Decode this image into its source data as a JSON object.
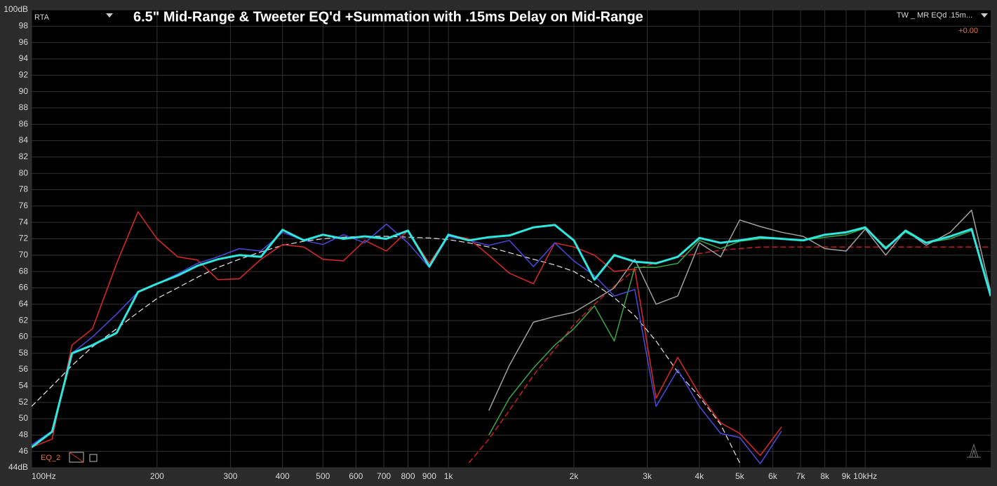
{
  "chart_data": {
    "type": "line",
    "title": "6.5\" Mid-Range & Tweeter EQ'd +Summation with .15ms Delay on Mid-Range",
    "xscale": "log",
    "grid": true,
    "xlim": [
      100,
      20000
    ],
    "ylim": [
      44,
      100
    ],
    "xticks": [
      {
        "value": 100,
        "label": "100Hz"
      },
      200,
      300,
      400,
      500,
      600,
      700,
      800,
      900,
      {
        "value": 1000,
        "label": "1k"
      },
      {
        "value": 2000,
        "label": "2k"
      },
      {
        "value": 3000,
        "label": "3k"
      },
      {
        "value": 4000,
        "label": "4k"
      },
      {
        "value": 5000,
        "label": "5k"
      },
      {
        "value": 6000,
        "label": "6k"
      },
      {
        "value": 7000,
        "label": "7k"
      },
      {
        "value": 8000,
        "label": "8k"
      },
      {
        "value": 9000,
        "label": "9k"
      },
      {
        "value": 10000,
        "label": "10kHz"
      }
    ],
    "yticks": [
      {
        "value": 44,
        "label": "44dB"
      },
      46,
      48,
      50,
      52,
      54,
      56,
      58,
      60,
      62,
      64,
      66,
      68,
      70,
      72,
      74,
      76,
      78,
      80,
      82,
      84,
      86,
      88,
      90,
      92,
      94,
      96,
      98,
      {
        "value": 100,
        "label": "100dB"
      }
    ],
    "x": [
      100,
      112,
      125,
      140,
      160,
      180,
      200,
      224,
      250,
      280,
      315,
      355,
      400,
      450,
      500,
      560,
      630,
      710,
      800,
      900,
      1000,
      1120,
      1250,
      1400,
      1600,
      1800,
      2000,
      2240,
      2500,
      2800,
      3150,
      3550,
      4000,
      4500,
      5000,
      5600,
      6300,
      7100,
      8000,
      9000,
      10000,
      11200,
      12500,
      14000,
      16000,
      18000,
      20000
    ],
    "series": [
      {
        "color": "#e8e8e8",
        "dash": true,
        "width": 1.2,
        "values": [
          51.5,
          54,
          56.5,
          58.8,
          61,
          63,
          64.7,
          66,
          67.3,
          68.5,
          69.5,
          70.4,
          71.2,
          71.7,
          72,
          72.2,
          72.3,
          72.3,
          72.2,
          72.1,
          71.9,
          71.5,
          71,
          70.3,
          69.5,
          68.8,
          68,
          66.5,
          64.8,
          62.6,
          59.5,
          55.7,
          52.7,
          49.3,
          44.6,
          null,
          null,
          null,
          null,
          null,
          null,
          null,
          null,
          null,
          null,
          null,
          null
        ]
      },
      {
        "color": "#d42020",
        "dash": true,
        "width": 1.4,
        "values": [
          null,
          null,
          null,
          null,
          null,
          null,
          null,
          null,
          null,
          null,
          null,
          null,
          null,
          null,
          null,
          null,
          null,
          null,
          null,
          null,
          null,
          44.6,
          47.5,
          51,
          55.3,
          58.5,
          61.5,
          64,
          66.2,
          68.2,
          69.1,
          69.8,
          70.2,
          70.6,
          70.8,
          71,
          71,
          71,
          71,
          71,
          71,
          71,
          71,
          71,
          71,
          71,
          71
        ]
      },
      {
        "color": "#a0a0a0",
        "dash": false,
        "width": 1.5,
        "values": [
          null,
          null,
          null,
          null,
          null,
          null,
          null,
          null,
          null,
          null,
          null,
          null,
          null,
          null,
          null,
          null,
          null,
          null,
          null,
          null,
          null,
          null,
          51,
          56.5,
          61.8,
          62.5,
          63,
          64.5,
          66,
          69.5,
          64,
          65,
          71.5,
          69.8,
          74.3,
          73.5,
          72.8,
          72.3,
          70.8,
          70.5,
          73.2,
          70,
          73,
          71.2,
          72.8,
          75.5,
          65.5
        ]
      },
      {
        "color": "#3aa64a",
        "dash": false,
        "width": 1.5,
        "values": [
          null,
          null,
          null,
          null,
          null,
          null,
          null,
          null,
          null,
          null,
          null,
          null,
          null,
          null,
          null,
          null,
          null,
          null,
          null,
          null,
          null,
          null,
          48,
          52.5,
          56.2,
          59,
          61,
          63.8,
          59.5,
          68.5,
          68.5,
          69,
          71.8,
          70.8,
          71.7,
          72,
          72,
          71.8,
          72.2,
          72.5,
          73.3,
          71,
          72.8,
          71.5,
          72,
          73,
          65
        ]
      },
      {
        "color": "#e02828",
        "dash": false,
        "width": 1.5,
        "values": [
          46.5,
          47.5,
          59,
          61,
          69,
          75.3,
          72,
          69.8,
          69.4,
          67,
          67.1,
          69.5,
          71.3,
          71,
          69.5,
          69.3,
          71.8,
          70.5,
          73,
          69,
          72.5,
          72,
          70,
          67.8,
          66.5,
          71.5,
          71,
          70,
          68,
          68.3,
          52.5,
          57.5,
          53,
          49.5,
          48.2,
          45.5,
          49,
          null,
          null,
          null,
          null,
          null,
          null,
          null,
          null,
          null,
          null
        ]
      },
      {
        "color": "#4a4ae0",
        "dash": false,
        "width": 1.5,
        "values": [
          46.8,
          48.5,
          58,
          60,
          62.8,
          65.5,
          66.5,
          67.7,
          69,
          69.8,
          70.8,
          70.5,
          72.8,
          71.8,
          71.3,
          72.5,
          71.5,
          73.8,
          71.5,
          68.5,
          72.3,
          71.8,
          71.2,
          71.8,
          68.6,
          71.5,
          69.3,
          67.5,
          65,
          65.8,
          51.5,
          56,
          51.5,
          48.2,
          47.7,
          44.5,
          48.5,
          null,
          null,
          null,
          null,
          null,
          null,
          null,
          null,
          null,
          null
        ]
      },
      {
        "color": "#2ee8e0",
        "dash": false,
        "width": 3,
        "values": [
          46.5,
          48.4,
          58,
          59,
          60.5,
          65.5,
          66.5,
          67.5,
          68.7,
          69.5,
          70,
          69.8,
          73.1,
          71.8,
          72.5,
          72,
          72.3,
          72,
          73,
          68.6,
          72.5,
          71.8,
          72.2,
          72.4,
          73.4,
          73.7,
          71.8,
          67,
          70,
          69.2,
          69,
          69.8,
          72.1,
          71.5,
          71.8,
          72.2,
          72,
          71.8,
          72.5,
          72.8,
          73.4,
          70.8,
          73,
          71.5,
          72.3,
          73.2,
          65
        ]
      }
    ]
  },
  "ui": {
    "mode": "RTA",
    "trace": "TW _ MR EQd .15m...",
    "offset": "+0.00",
    "eq": "EQ_2"
  }
}
